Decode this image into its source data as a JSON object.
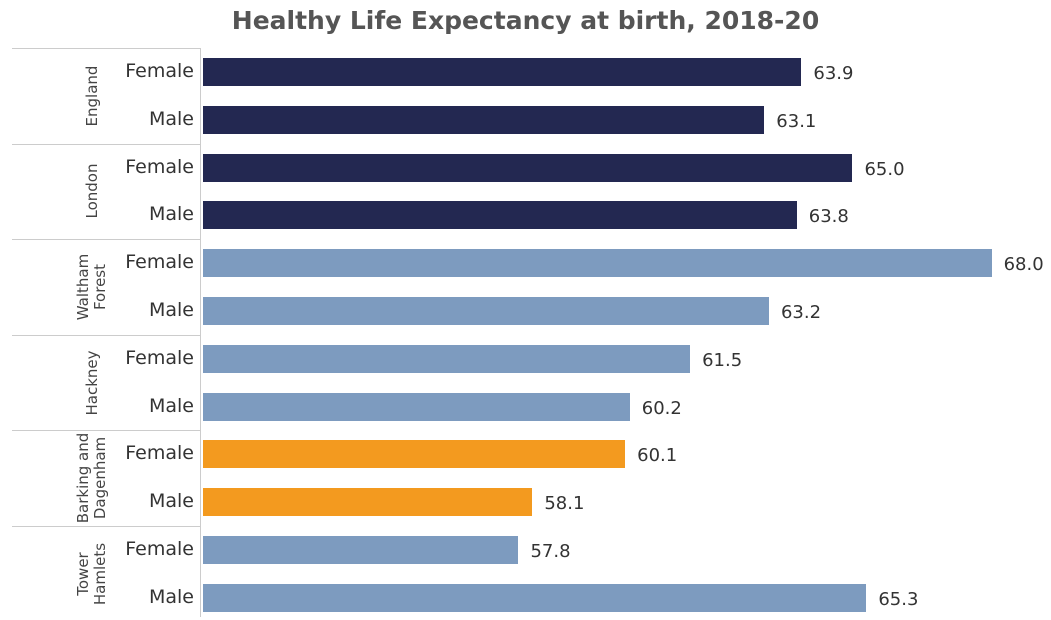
{
  "chart_data": {
    "type": "bar",
    "orientation": "horizontal",
    "title": "Healthy Life Expectancy at birth, 2018-20",
    "xlim": [
      51,
      69
    ],
    "groups": [
      {
        "name": "England",
        "color": "#232851",
        "categories": [
          "Female",
          "Male"
        ],
        "values": [
          63.9,
          63.1
        ],
        "value_labels": [
          "63.9",
          "63.1"
        ]
      },
      {
        "name": "London",
        "color": "#232851",
        "categories": [
          "Female",
          "Male"
        ],
        "values": [
          65.0,
          63.8
        ],
        "value_labels": [
          "65.0",
          "63.8"
        ]
      },
      {
        "name": "Waltham Forest",
        "color": "#7d9bbf",
        "categories": [
          "Female",
          "Male"
        ],
        "values": [
          68.0,
          63.2
        ],
        "value_labels": [
          "68.0",
          "63.2"
        ]
      },
      {
        "name": "Hackney",
        "color": "#7d9bbf",
        "categories": [
          "Female",
          "Male"
        ],
        "values": [
          61.5,
          60.2
        ],
        "value_labels": [
          "61.5",
          "60.2"
        ]
      },
      {
        "name": "Barking and Dagenham",
        "color": "#f39a1f",
        "categories": [
          "Female",
          "Male"
        ],
        "values": [
          60.1,
          58.1
        ],
        "value_labels": [
          "60.1",
          "58.1"
        ]
      },
      {
        "name": "Tower Hamlets",
        "color": "#7d9bbf",
        "categories": [
          "Female",
          "Male"
        ],
        "values": [
          57.8,
          65.3
        ],
        "value_labels": [
          "57.8",
          "65.3"
        ]
      }
    ]
  }
}
